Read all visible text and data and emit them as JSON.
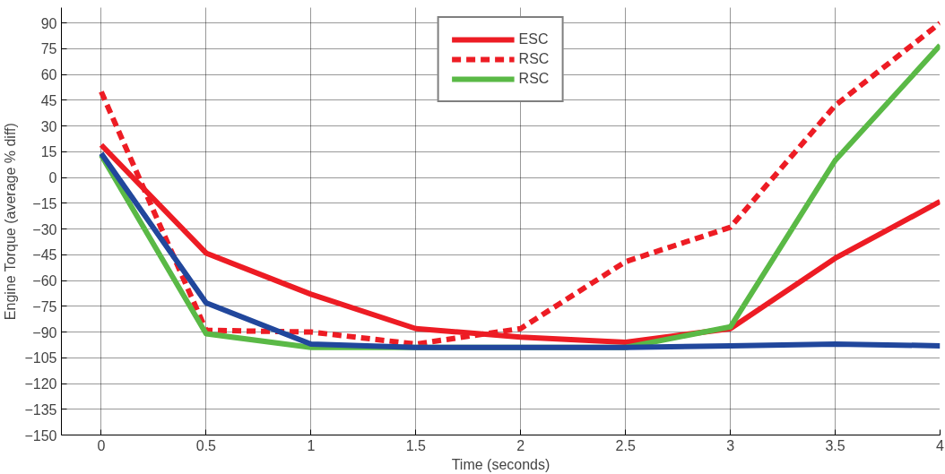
{
  "chart_data": {
    "type": "line",
    "xlabel": "Time (seconds)",
    "ylabel": "Engine Torque (average % diff)",
    "x": [
      0,
      0.5,
      1,
      1.5,
      2,
      2.5,
      3,
      3.5,
      4
    ],
    "series": [
      {
        "name": "ESC",
        "color": "#ed1c24",
        "line_style": "solid",
        "values": [
          19,
          -44,
          -68,
          -88,
          -93,
          -96,
          -88,
          -47,
          -14
        ]
      },
      {
        "name": "RSC",
        "color": "#ed1c24",
        "line_style": "dashed",
        "values": [
          50,
          -89,
          -90,
          -97,
          -88,
          -49,
          -29,
          42,
          90
        ]
      },
      {
        "name": "RSC",
        "color": "#5ab946",
        "line_style": "solid",
        "values": [
          13,
          -91,
          -99,
          -99,
          -99,
          -99,
          -87,
          10,
          77
        ]
      },
      {
        "color": "#21479c",
        "line_style": "solid",
        "values": [
          14,
          -73,
          -97,
          -99,
          -99,
          -99,
          -98,
          -97,
          -98
        ]
      }
    ],
    "xlim": [
      -0.19,
      4
    ],
    "ylim": [
      -150,
      99
    ],
    "xticks": [
      0,
      0.5,
      1,
      1.5,
      2,
      2.5,
      3,
      3.5,
      4
    ],
    "yticks": [
      -150,
      -135,
      -120,
      -105,
      -90,
      -75,
      -60,
      -45,
      -30,
      -15,
      0,
      15,
      30,
      45,
      60,
      75,
      90
    ],
    "grid": true,
    "legend": "top",
    "marker": "none"
  }
}
